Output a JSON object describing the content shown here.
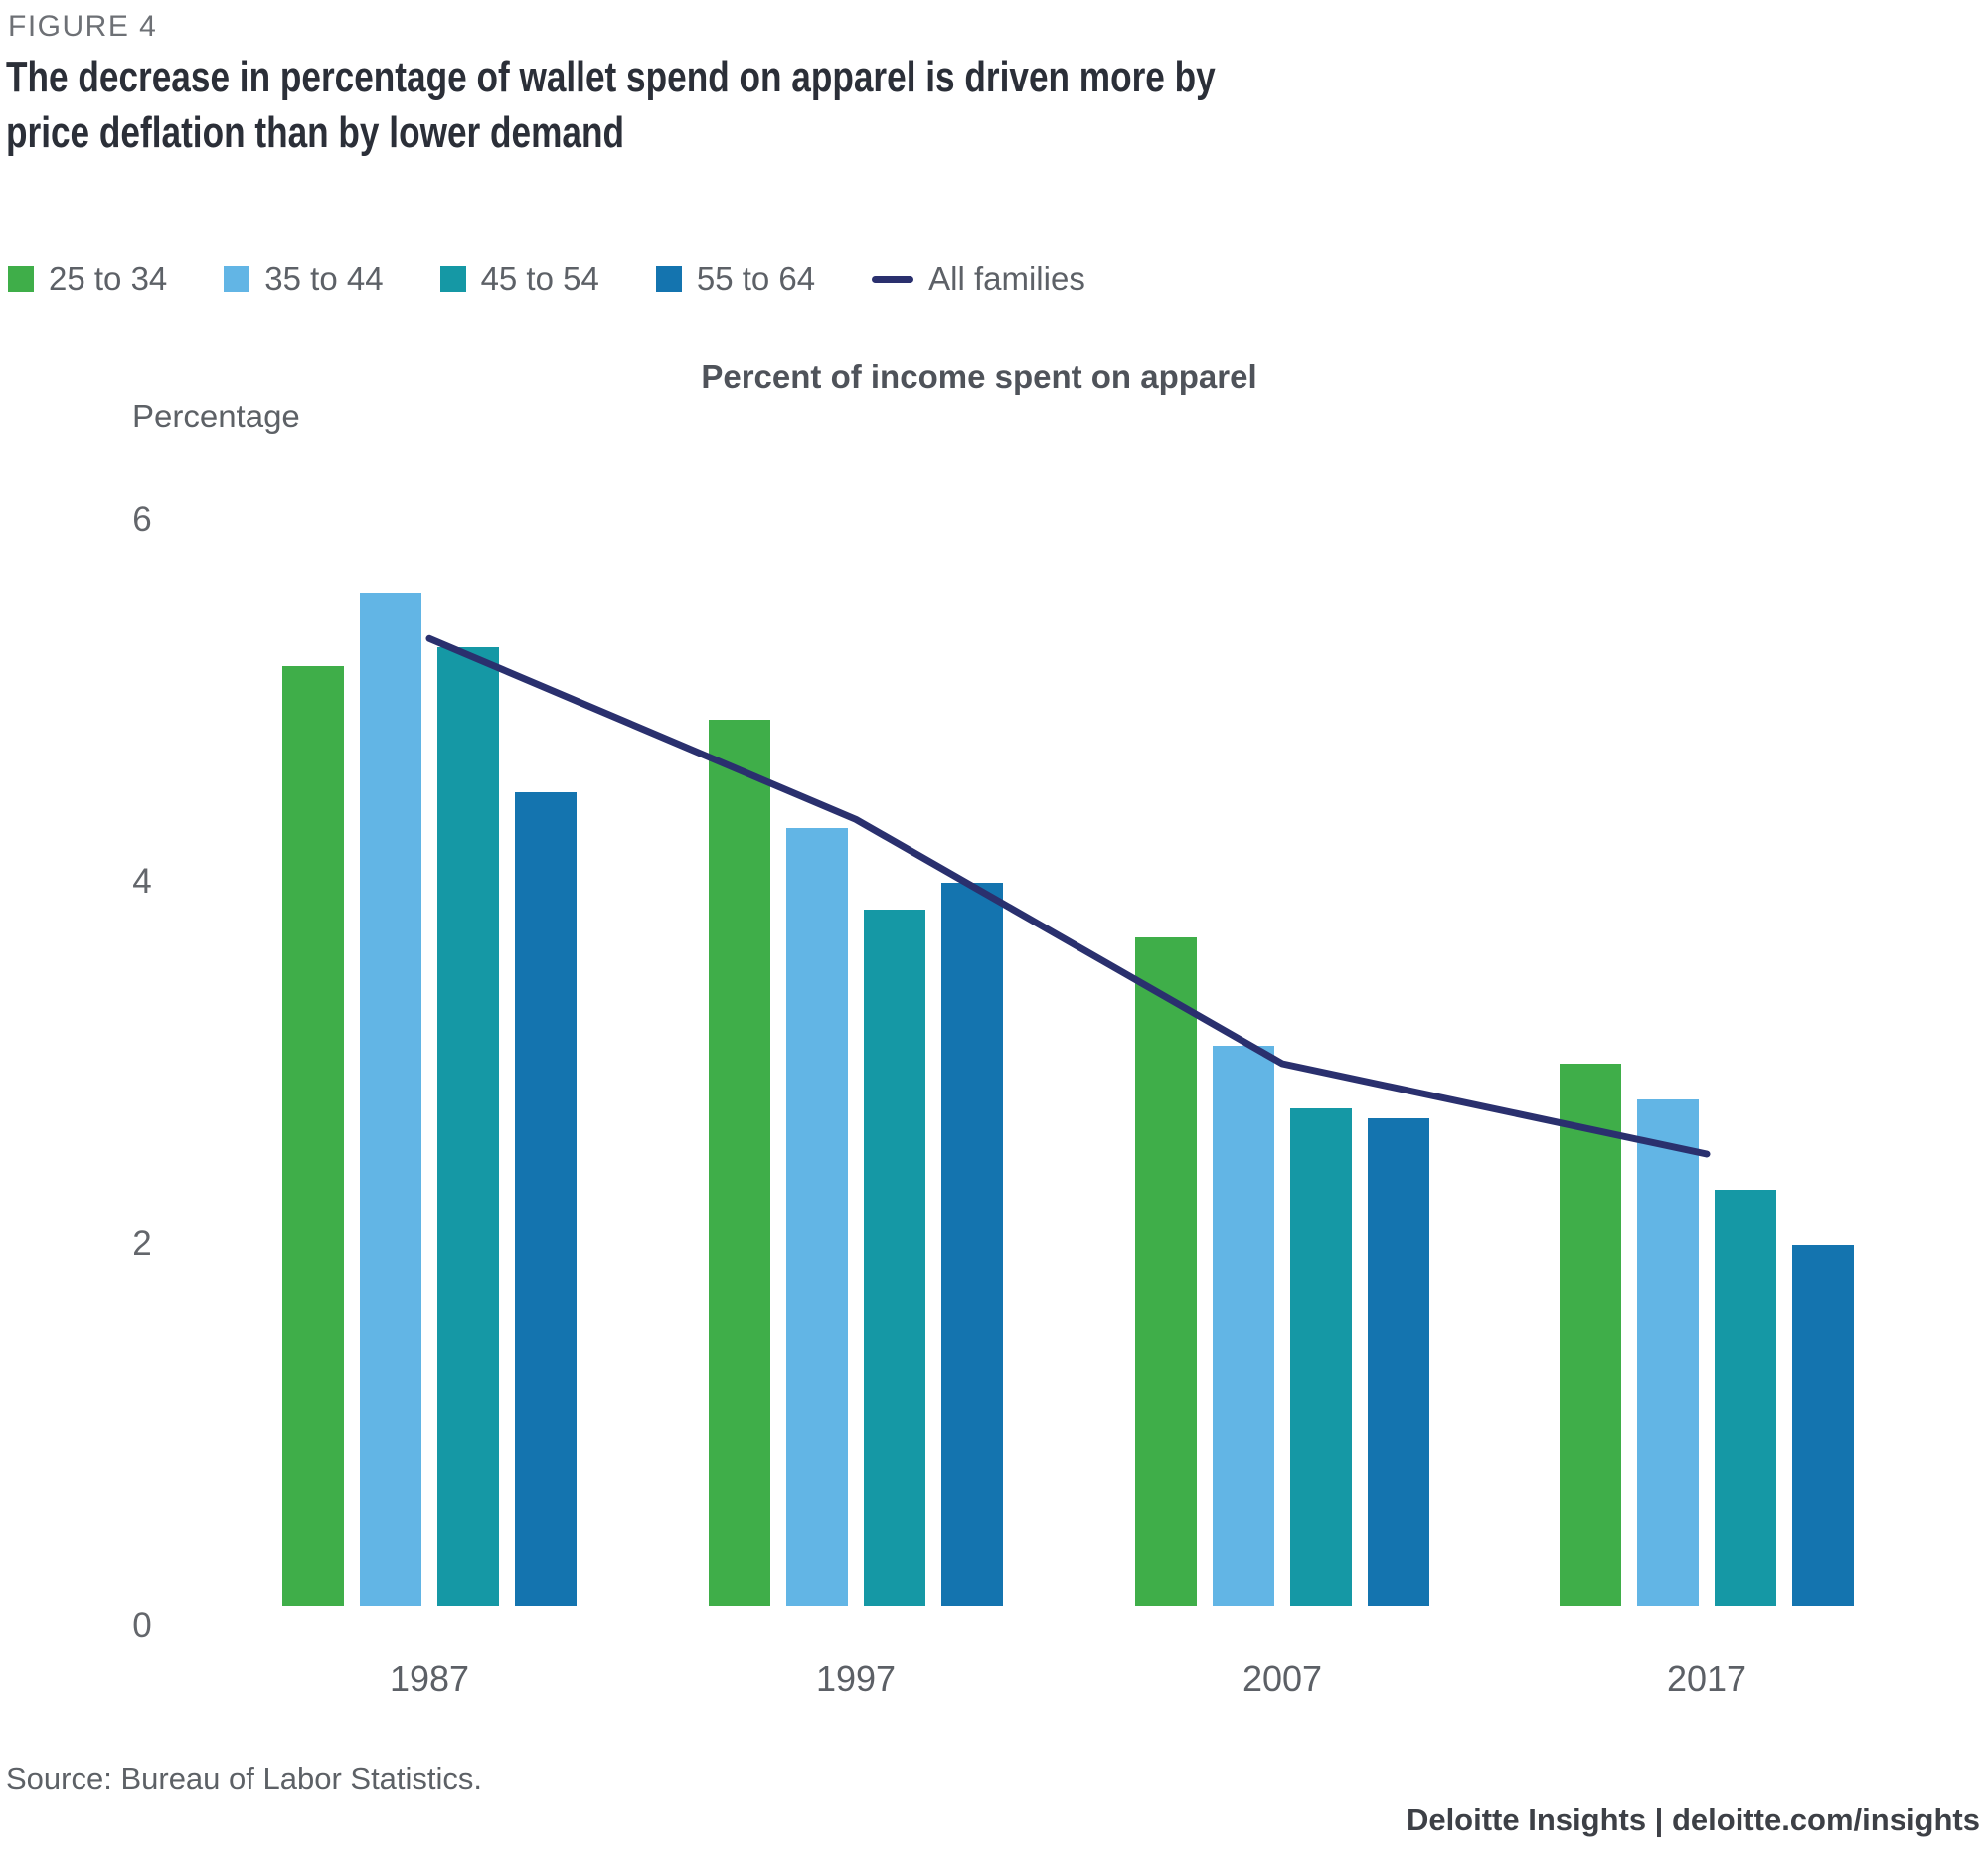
{
  "figure_label": "FIGURE 4",
  "title": "The decrease in percentage of wallet spend on apparel is driven more by\nprice deflation than by lower demand",
  "legend": [
    {
      "label": "25 to 34",
      "color": "#3fae49",
      "swatch": "square"
    },
    {
      "label": "35 to 44",
      "color": "#62b5e5",
      "swatch": "square"
    },
    {
      "label": "45 to 54",
      "color": "#1598a5",
      "swatch": "square"
    },
    {
      "label": "55 to 64",
      "color": "#1474af",
      "swatch": "square"
    },
    {
      "label": "All families",
      "color": "#2a306e",
      "swatch": "line"
    }
  ],
  "chart_data": {
    "type": "bar",
    "title": "Percent of income spent on apparel",
    "ylabel": "Percentage",
    "xlabel": "",
    "categories": [
      "1987",
      "1997",
      "2007",
      "2017"
    ],
    "series": [
      {
        "name": "25 to 34",
        "color": "#3fae49",
        "values": [
          5.2,
          4.9,
          3.7,
          3.0
        ]
      },
      {
        "name": "35 to 44",
        "color": "#62b5e5",
        "values": [
          5.6,
          4.3,
          3.1,
          2.8
        ]
      },
      {
        "name": "45 to 54",
        "color": "#1598a5",
        "values": [
          5.3,
          3.85,
          2.75,
          2.3
        ]
      },
      {
        "name": "55 to 64",
        "color": "#1474af",
        "values": [
          4.5,
          4.0,
          2.7,
          2.0
        ]
      }
    ],
    "line_series": {
      "name": "All families",
      "color": "#2a306e",
      "values": [
        5.35,
        4.35,
        3.0,
        2.5
      ]
    },
    "ylim": [
      0,
      6
    ],
    "yticks": [
      0,
      2,
      4,
      6
    ],
    "grid": false,
    "legend_position": "top-left"
  },
  "source": "Source: Bureau of Labor Statistics.",
  "footer": "Deloitte Insights | deloitte.com/insights"
}
